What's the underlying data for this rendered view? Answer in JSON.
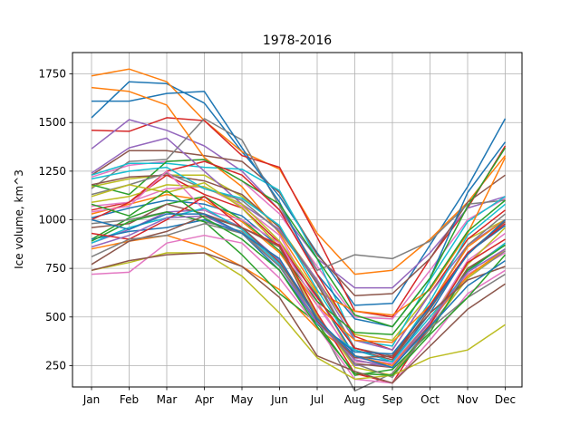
{
  "chart_data": {
    "type": "line",
    "title": "1978-2016",
    "xlabel": "",
    "ylabel": "Ice volume, km^3",
    "categories": [
      "Jan",
      "Feb",
      "Mar",
      "Apr",
      "May",
      "Jun",
      "Jul",
      "Aug",
      "Sep",
      "Oct",
      "Nov",
      "Dec"
    ],
    "ylim": [
      140,
      1860
    ],
    "yticks": [
      250,
      500,
      750,
      1000,
      1250,
      1500,
      1750
    ],
    "grid": true,
    "series": [
      {
        "color": "#1f77b4",
        "values": [
          1525,
          1710,
          1700,
          1600,
          1350,
          1120,
          830,
          560,
          570,
          870,
          1170,
          1520
        ]
      },
      {
        "color": "#ff7f0e",
        "values": [
          1740,
          1775,
          1710,
          1510,
          1350,
          1260,
          930,
          720,
          740,
          900,
          1090,
          1330
        ]
      },
      {
        "color": "#d62728",
        "values": [
          1460,
          1455,
          1525,
          1510,
          1330,
          1270,
          910,
          530,
          500,
          800,
          1060,
          1380
        ]
      },
      {
        "color": "#9467bd",
        "values": [
          1365,
          1515,
          1460,
          1380,
          1250,
          1050,
          800,
          650,
          650,
          830,
          1060,
          1120
        ]
      },
      {
        "color": "#8c564b",
        "values": [
          1230,
          1355,
          1355,
          1330,
          1300,
          1140,
          820,
          610,
          620,
          800,
          1090,
          1230
        ]
      },
      {
        "color": "#e377c2",
        "values": [
          1220,
          1280,
          1300,
          1310,
          1200,
          1030,
          760,
          500,
          490,
          740,
          1000,
          1110
        ]
      },
      {
        "color": "#7f7f7f",
        "values": [
          1160,
          1300,
          1310,
          1520,
          1410,
          1070,
          740,
          820,
          800,
          890,
          1080,
          1100
        ]
      },
      {
        "color": "#bcbd22",
        "values": [
          1170,
          1210,
          1230,
          1230,
          1120,
          960,
          690,
          410,
          380,
          620,
          900,
          1000
        ]
      },
      {
        "color": "#17becf",
        "values": [
          1230,
          1290,
          1290,
          1270,
          1260,
          1150,
          800,
          380,
          350,
          690,
          990,
          1120
        ]
      },
      {
        "color": "#1f77b4",
        "values": [
          1610,
          1610,
          1650,
          1660,
          1370,
          1090,
          720,
          490,
          450,
          700,
          1140,
          1400
        ]
      },
      {
        "color": "#ff7f0e",
        "values": [
          1680,
          1660,
          1590,
          1320,
          1170,
          930,
          630,
          530,
          510,
          640,
          930,
          1320
        ]
      },
      {
        "color": "#2ca02c",
        "values": [
          1180,
          1130,
          1300,
          1310,
          1200,
          1080,
          800,
          510,
          450,
          700,
          1070,
          1370
        ]
      },
      {
        "color": "#d62728",
        "values": [
          1050,
          1090,
          1250,
          1300,
          1230,
          1050,
          720,
          400,
          330,
          620,
          900,
          1050
        ]
      },
      {
        "color": "#9467bd",
        "values": [
          1240,
          1370,
          1420,
          1250,
          1080,
          950,
          690,
          380,
          330,
          620,
          870,
          1000
        ]
      },
      {
        "color": "#8c564b",
        "values": [
          1180,
          1220,
          1230,
          1200,
          1130,
          960,
          670,
          330,
          280,
          540,
          830,
          990
        ]
      },
      {
        "color": "#e377c2",
        "values": [
          1070,
          1090,
          1160,
          1170,
          1070,
          920,
          580,
          270,
          260,
          480,
          790,
          930
        ]
      },
      {
        "color": "#7f7f7f",
        "values": [
          1130,
          1180,
          1240,
          1160,
          1100,
          940,
          680,
          340,
          300,
          560,
          870,
          1030
        ]
      },
      {
        "color": "#bcbd22",
        "values": [
          1090,
          1120,
          1180,
          1170,
          1080,
          890,
          620,
          280,
          240,
          480,
          770,
          960
        ]
      },
      {
        "color": "#17becf",
        "values": [
          1210,
          1250,
          1270,
          1160,
          1110,
          970,
          640,
          340,
          290,
          580,
          920,
          1080
        ]
      },
      {
        "color": "#1f77b4",
        "values": [
          1010,
          1060,
          1100,
          1080,
          1020,
          860,
          610,
          300,
          270,
          520,
          830,
          970
        ]
      },
      {
        "color": "#ff7f0e",
        "values": [
          1030,
          1080,
          1130,
          1100,
          990,
          830,
          560,
          380,
          370,
          560,
          860,
          1000
        ]
      },
      {
        "color": "#2ca02c",
        "values": [
          900,
          1010,
          1080,
          1120,
          1000,
          840,
          580,
          420,
          410,
          650,
          940,
          1100
        ]
      },
      {
        "color": "#d62728",
        "values": [
          1000,
          1090,
          1230,
          1130,
          1060,
          880,
          600,
          340,
          290,
          560,
          830,
          980
        ]
      },
      {
        "color": "#9467bd",
        "values": [
          880,
          950,
          1040,
          1050,
          960,
          790,
          510,
          250,
          260,
          480,
          740,
          880
        ]
      },
      {
        "color": "#8c564b",
        "values": [
          960,
          980,
          1080,
          1030,
          960,
          780,
          500,
          260,
          240,
          460,
          750,
          870
        ]
      },
      {
        "color": "#e377c2",
        "values": [
          1040,
          1070,
          1250,
          1050,
          1000,
          880,
          560,
          290,
          260,
          470,
          720,
          830
        ]
      },
      {
        "color": "#7f7f7f",
        "values": [
          980,
          1000,
          1040,
          990,
          940,
          760,
          480,
          120,
          210,
          450,
          700,
          840
        ]
      },
      {
        "color": "#bcbd22",
        "values": [
          1120,
          1180,
          1140,
          1190,
          1060,
          860,
          510,
          240,
          200,
          440,
          700,
          850
        ]
      },
      {
        "color": "#17becf",
        "values": [
          880,
          960,
          1010,
          1060,
          950,
          770,
          460,
          330,
          270,
          500,
          730,
          880
        ]
      },
      {
        "color": "#1f77b4",
        "values": [
          900,
          940,
          960,
          1000,
          930,
          740,
          470,
          320,
          310,
          550,
          820,
          1000
        ]
      },
      {
        "color": "#ff7f0e",
        "values": [
          850,
          890,
          920,
          860,
          760,
          640,
          440,
          300,
          250,
          480,
          710,
          850
        ]
      },
      {
        "color": "#2ca02c",
        "values": [
          890,
          990,
          1040,
          990,
          820,
          620,
          470,
          200,
          230,
          420,
          740,
          870
        ]
      },
      {
        "color": "#d62728",
        "values": [
          930,
          900,
          1000,
          1120,
          960,
          870,
          520,
          210,
          160,
          460,
          780,
          900
        ]
      },
      {
        "color": "#9467bd",
        "values": [
          860,
          920,
          1010,
          1020,
          930,
          760,
          470,
          280,
          240,
          480,
          730,
          850
        ]
      },
      {
        "color": "#8c564b",
        "values": [
          770,
          890,
          940,
          1020,
          960,
          860,
          480,
          290,
          300,
          520,
          690,
          760
        ]
      },
      {
        "color": "#e377c2",
        "values": [
          720,
          730,
          880,
          920,
          880,
          700,
          450,
          180,
          160,
          380,
          620,
          740
        ]
      },
      {
        "color": "#7f7f7f",
        "values": [
          810,
          900,
          920,
          980,
          930,
          760,
          500,
          260,
          190,
          440,
          600,
          720
        ]
      },
      {
        "color": "#bcbd22",
        "values": [
          740,
          780,
          830,
          830,
          710,
          520,
          290,
          180,
          200,
          290,
          330,
          460
        ]
      },
      {
        "color": "#2ca02c",
        "values": [
          1080,
          1020,
          1150,
          1010,
          900,
          740,
          450,
          210,
          200,
          410,
          600,
          820
        ]
      },
      {
        "color": "#8c564b",
        "values": [
          740,
          790,
          820,
          830,
          760,
          600,
          300,
          220,
          160,
          350,
          540,
          670
        ]
      },
      {
        "color": "#1f77b4",
        "values": [
          1000,
          950,
          1030,
          1030,
          930,
          800,
          490,
          300,
          240,
          450,
          660,
          790
        ]
      }
    ]
  }
}
